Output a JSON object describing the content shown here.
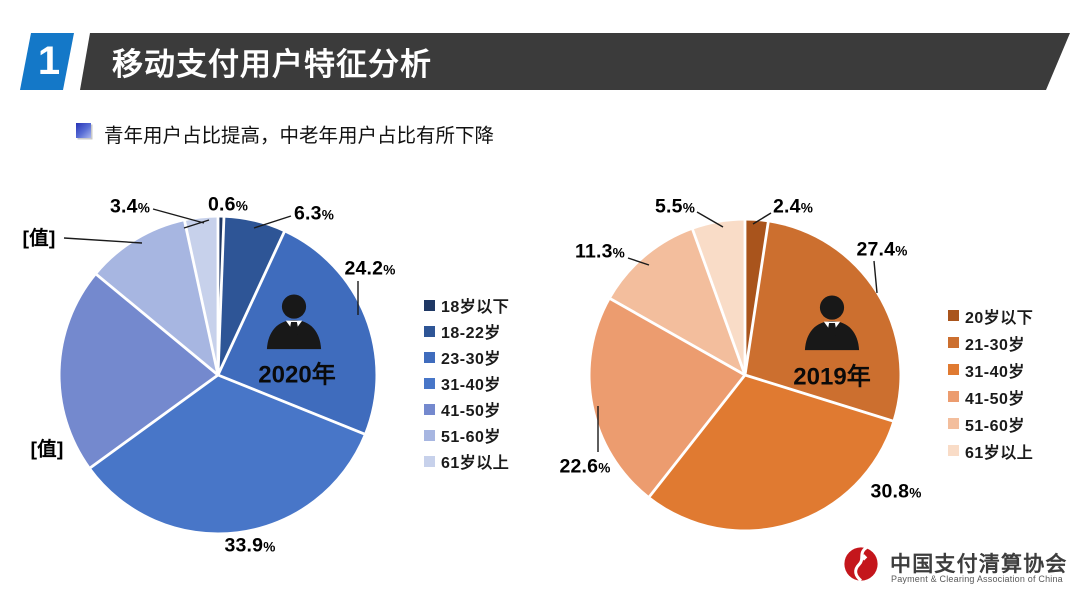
{
  "header": {
    "number": "1",
    "title": "移动支付用户特征分析",
    "bar_color": "#3B3B3B",
    "badge_color": "#1478C8"
  },
  "subtitle": {
    "text": "青年用户占比提高，中老年用户占比有所下降"
  },
  "chart_data": [
    {
      "type": "pie",
      "title": "2020年",
      "legend_position": "right",
      "slices": [
        {
          "category": "18岁以下",
          "value": 0.6,
          "label": "0.6%",
          "color": "#1F3864"
        },
        {
          "category": "18-22岁",
          "value": 6.3,
          "label": "6.3%",
          "color": "#2E5596"
        },
        {
          "category": "23-30岁",
          "value": 24.2,
          "label": "24.2%",
          "color": "#3F6CBD"
        },
        {
          "category": "31-40岁",
          "value": 33.9,
          "label": "33.9%",
          "color": "#4876C8"
        },
        {
          "category": "41-50岁",
          "value": 21.0,
          "label": "[值]",
          "color": "#7489CE"
        },
        {
          "category": "51-60岁",
          "value": 10.6,
          "label": "[值]",
          "color": "#A7B6E1"
        },
        {
          "category": "61岁以上",
          "value": 3.4,
          "label": "3.4%",
          "color": "#C7D1EB"
        }
      ]
    },
    {
      "type": "pie",
      "title": "2019年",
      "legend_position": "right",
      "slices": [
        {
          "category": "20岁以下",
          "value": 2.4,
          "label": "2.4%",
          "color": "#A9541C"
        },
        {
          "category": "21-30岁",
          "value": 27.4,
          "label": "27.4%",
          "color": "#CC6F2F"
        },
        {
          "category": "31-40岁",
          "value": 30.8,
          "label": "30.8%",
          "color": "#E07A31"
        },
        {
          "category": "41-50岁",
          "value": 22.6,
          "label": "22.6%",
          "color": "#EC9C6F"
        },
        {
          "category": "51-60岁",
          "value": 11.3,
          "label": "11.3%",
          "color": "#F3BE9D"
        },
        {
          "category": "61岁以上",
          "value": 5.5,
          "label": "5.5%",
          "color": "#F9DCC7"
        }
      ]
    }
  ],
  "footer": {
    "org_cn": "中国支付清算协会",
    "org_en": "Payment & Clearing Association of China",
    "logo_color": "#C4161C"
  }
}
